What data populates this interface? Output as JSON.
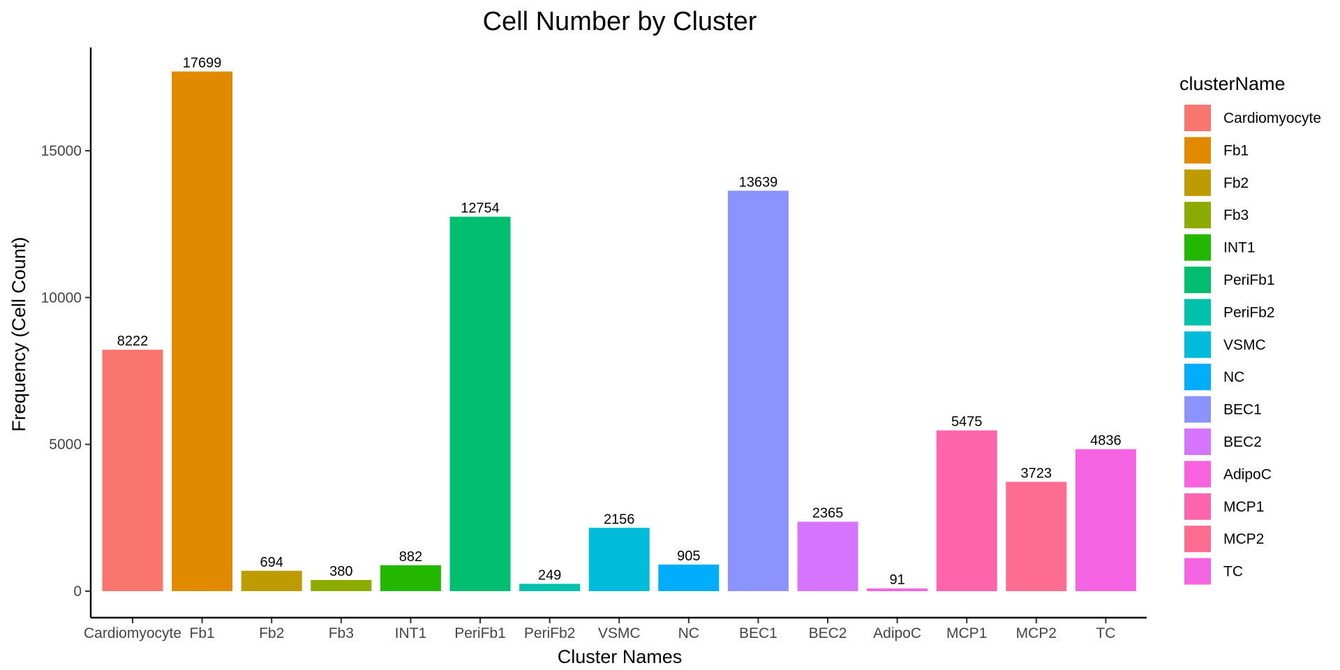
{
  "chart_data": {
    "type": "bar",
    "title": "Cell Number by Cluster",
    "xlabel": "Cluster Names",
    "ylabel": "Frequency (Cell Count)",
    "categories": [
      "Cardiomyocyte",
      "Fb1",
      "Fb2",
      "Fb3",
      "INT1",
      "PeriFb1",
      "PeriFb2",
      "VSMC",
      "NC",
      "BEC1",
      "BEC2",
      "AdipoC",
      "MCP1",
      "MCP2",
      "TC"
    ],
    "values": [
      8222,
      17699,
      694,
      380,
      882,
      12754,
      249,
      2156,
      905,
      13639,
      2365,
      91,
      5475,
      3723,
      4836
    ],
    "colors": [
      "#F8766D",
      "#E18A00",
      "#BE9C00",
      "#8CAB00",
      "#24B700",
      "#00BE70",
      "#00C1AB",
      "#00BBDA",
      "#00ACFC",
      "#8B93FF",
      "#D575FE",
      "#F962DD",
      "#FF65AC",
      "#FF6C91",
      "#F564E3"
    ],
    "ylim": [
      0,
      18500
    ],
    "yticks": [
      0,
      5000,
      10000,
      15000
    ],
    "grid": false,
    "legend": {
      "title": "clusterName",
      "position": "right"
    }
  }
}
